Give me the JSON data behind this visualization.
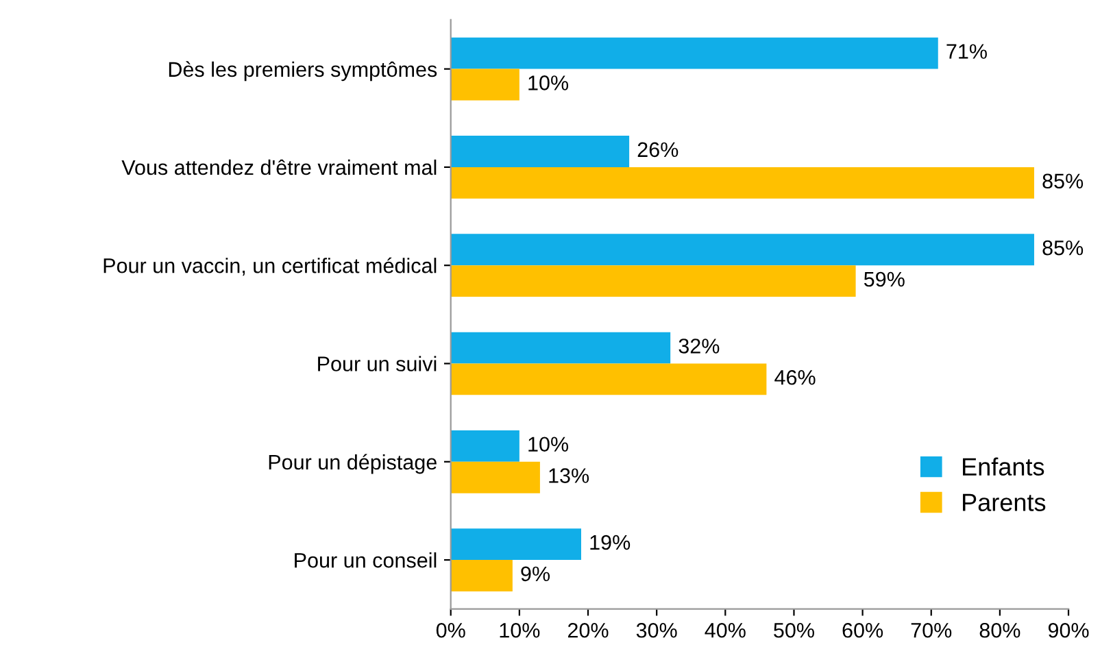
{
  "chart_data": {
    "type": "bar",
    "orientation": "horizontal",
    "categories": [
      "Dès les premiers symptômes",
      "Vous attendez d'être vraiment mal",
      "Pour un vaccin, un certificat médical",
      "Pour un suivi",
      "Pour un dépistage",
      "Pour un conseil"
    ],
    "series": [
      {
        "name": "Enfants",
        "color": "#11aee8",
        "values": [
          71,
          26,
          85,
          32,
          10,
          19
        ],
        "value_labels": [
          "71%",
          "26%",
          "85%",
          "32%",
          "10%",
          "19%"
        ]
      },
      {
        "name": "Parents",
        "color": "#ffc000",
        "values": [
          10,
          85,
          59,
          46,
          13,
          9
        ],
        "value_labels": [
          "10%",
          "85%",
          "59%",
          "46%",
          "13%",
          "9%"
        ]
      }
    ],
    "xlim": [
      0,
      90
    ],
    "xticks": [
      {
        "value": 0,
        "label": "0%"
      },
      {
        "value": 10,
        "label": "10%"
      },
      {
        "value": 20,
        "label": "20%"
      },
      {
        "value": 30,
        "label": "30%"
      },
      {
        "value": 40,
        "label": "40%"
      },
      {
        "value": 50,
        "label": "50%"
      },
      {
        "value": 60,
        "label": "60%"
      },
      {
        "value": 70,
        "label": "70%"
      },
      {
        "value": 80,
        "label": "80%"
      },
      {
        "value": 90,
        "label": "90%"
      }
    ],
    "grid": false,
    "legend": "bottom right"
  }
}
